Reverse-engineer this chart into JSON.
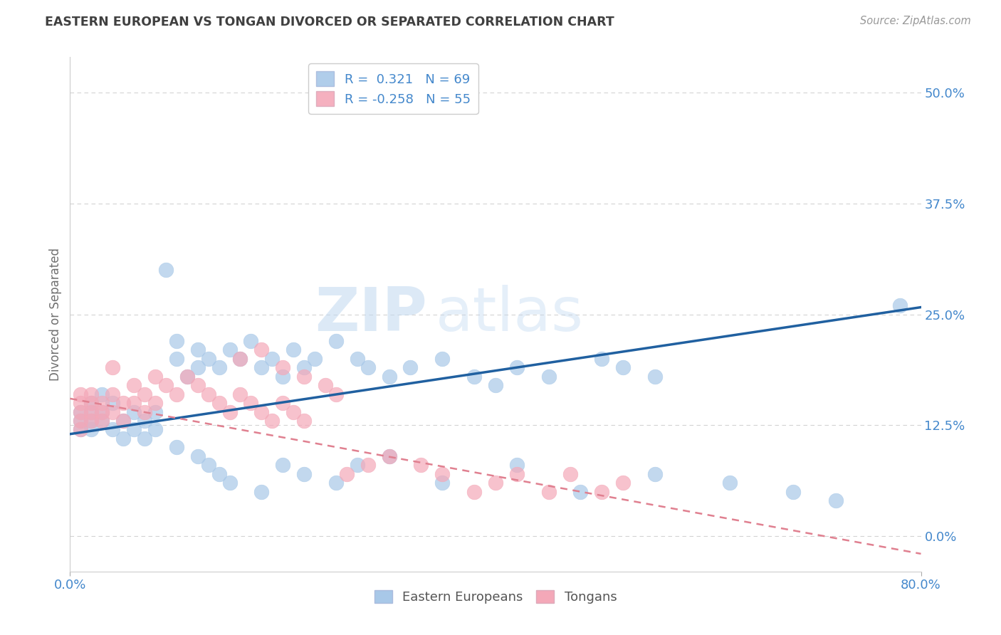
{
  "title": "EASTERN EUROPEAN VS TONGAN DIVORCED OR SEPARATED CORRELATION CHART",
  "source": "Source: ZipAtlas.com",
  "ylabel": "Divorced or Separated",
  "watermark_zip": "ZIP",
  "watermark_atlas": "atlas",
  "blue_color": "#a8c8e8",
  "pink_color": "#f4a8b8",
  "blue_line_color": "#2060a0",
  "pink_line_color": "#e08090",
  "xlim": [
    0.0,
    0.8
  ],
  "ylim": [
    -0.04,
    0.54
  ],
  "yticks": [
    0.0,
    0.125,
    0.25,
    0.375,
    0.5
  ],
  "ytick_labels": [
    "0.0%",
    "12.5%",
    "25.0%",
    "37.5%",
    "50.0%"
  ],
  "xtick_labels": [
    "0.0%",
    "80.0%"
  ],
  "legend_line1": "R =  0.321   N = 69",
  "legend_line2": "R = -0.258   N = 55",
  "legend_color1": "#a8c8e8",
  "legend_color2": "#f4a8b8",
  "legend_text_color": "#4488cc",
  "background_color": "#ffffff",
  "grid_color": "#c8c8c8",
  "title_color": "#404040",
  "axis_label_color": "#707070",
  "tick_label_color": "#4488cc",
  "blue_x": [
    0.01,
    0.01,
    0.01,
    0.02,
    0.02,
    0.02,
    0.02,
    0.03,
    0.03,
    0.03,
    0.04,
    0.04,
    0.05,
    0.05,
    0.06,
    0.06,
    0.07,
    0.07,
    0.08,
    0.08,
    0.09,
    0.1,
    0.1,
    0.11,
    0.12,
    0.12,
    0.13,
    0.14,
    0.15,
    0.16,
    0.17,
    0.18,
    0.19,
    0.2,
    0.21,
    0.22,
    0.23,
    0.25,
    0.27,
    0.28,
    0.3,
    0.32,
    0.35,
    0.38,
    0.4,
    0.42,
    0.45,
    0.5,
    0.52,
    0.55,
    0.1,
    0.12,
    0.13,
    0.14,
    0.15,
    0.18,
    0.2,
    0.22,
    0.25,
    0.27,
    0.3,
    0.35,
    0.42,
    0.48,
    0.55,
    0.62,
    0.68,
    0.72,
    0.78
  ],
  "blue_y": [
    0.13,
    0.14,
    0.12,
    0.13,
    0.15,
    0.12,
    0.14,
    0.13,
    0.16,
    0.14,
    0.15,
    0.12,
    0.13,
    0.11,
    0.14,
    0.12,
    0.13,
    0.11,
    0.14,
    0.12,
    0.3,
    0.22,
    0.2,
    0.18,
    0.21,
    0.19,
    0.2,
    0.19,
    0.21,
    0.2,
    0.22,
    0.19,
    0.2,
    0.18,
    0.21,
    0.19,
    0.2,
    0.22,
    0.2,
    0.19,
    0.18,
    0.19,
    0.2,
    0.18,
    0.17,
    0.19,
    0.18,
    0.2,
    0.19,
    0.18,
    0.1,
    0.09,
    0.08,
    0.07,
    0.06,
    0.05,
    0.08,
    0.07,
    0.06,
    0.08,
    0.09,
    0.06,
    0.08,
    0.05,
    0.07,
    0.06,
    0.05,
    0.04,
    0.26
  ],
  "pink_x": [
    0.01,
    0.01,
    0.01,
    0.01,
    0.01,
    0.02,
    0.02,
    0.02,
    0.02,
    0.03,
    0.03,
    0.03,
    0.04,
    0.04,
    0.04,
    0.05,
    0.05,
    0.06,
    0.06,
    0.07,
    0.07,
    0.08,
    0.08,
    0.09,
    0.1,
    0.11,
    0.12,
    0.13,
    0.14,
    0.15,
    0.16,
    0.17,
    0.18,
    0.19,
    0.2,
    0.21,
    0.22,
    0.16,
    0.18,
    0.2,
    0.22,
    0.24,
    0.25,
    0.26,
    0.28,
    0.3,
    0.33,
    0.35,
    0.38,
    0.4,
    0.42,
    0.45,
    0.47,
    0.5,
    0.52
  ],
  "pink_y": [
    0.16,
    0.15,
    0.14,
    0.13,
    0.12,
    0.15,
    0.14,
    0.13,
    0.16,
    0.15,
    0.14,
    0.13,
    0.16,
    0.14,
    0.19,
    0.15,
    0.13,
    0.17,
    0.15,
    0.16,
    0.14,
    0.18,
    0.15,
    0.17,
    0.16,
    0.18,
    0.17,
    0.16,
    0.15,
    0.14,
    0.16,
    0.15,
    0.14,
    0.13,
    0.15,
    0.14,
    0.13,
    0.2,
    0.21,
    0.19,
    0.18,
    0.17,
    0.16,
    0.07,
    0.08,
    0.09,
    0.08,
    0.07,
    0.05,
    0.06,
    0.07,
    0.05,
    0.07,
    0.05,
    0.06
  ],
  "blue_line_x0": 0.0,
  "blue_line_y0": 0.115,
  "blue_line_x1": 0.8,
  "blue_line_y1": 0.258,
  "pink_line_x0": 0.0,
  "pink_line_y0": 0.155,
  "pink_line_x1": 0.8,
  "pink_line_y1": -0.02
}
